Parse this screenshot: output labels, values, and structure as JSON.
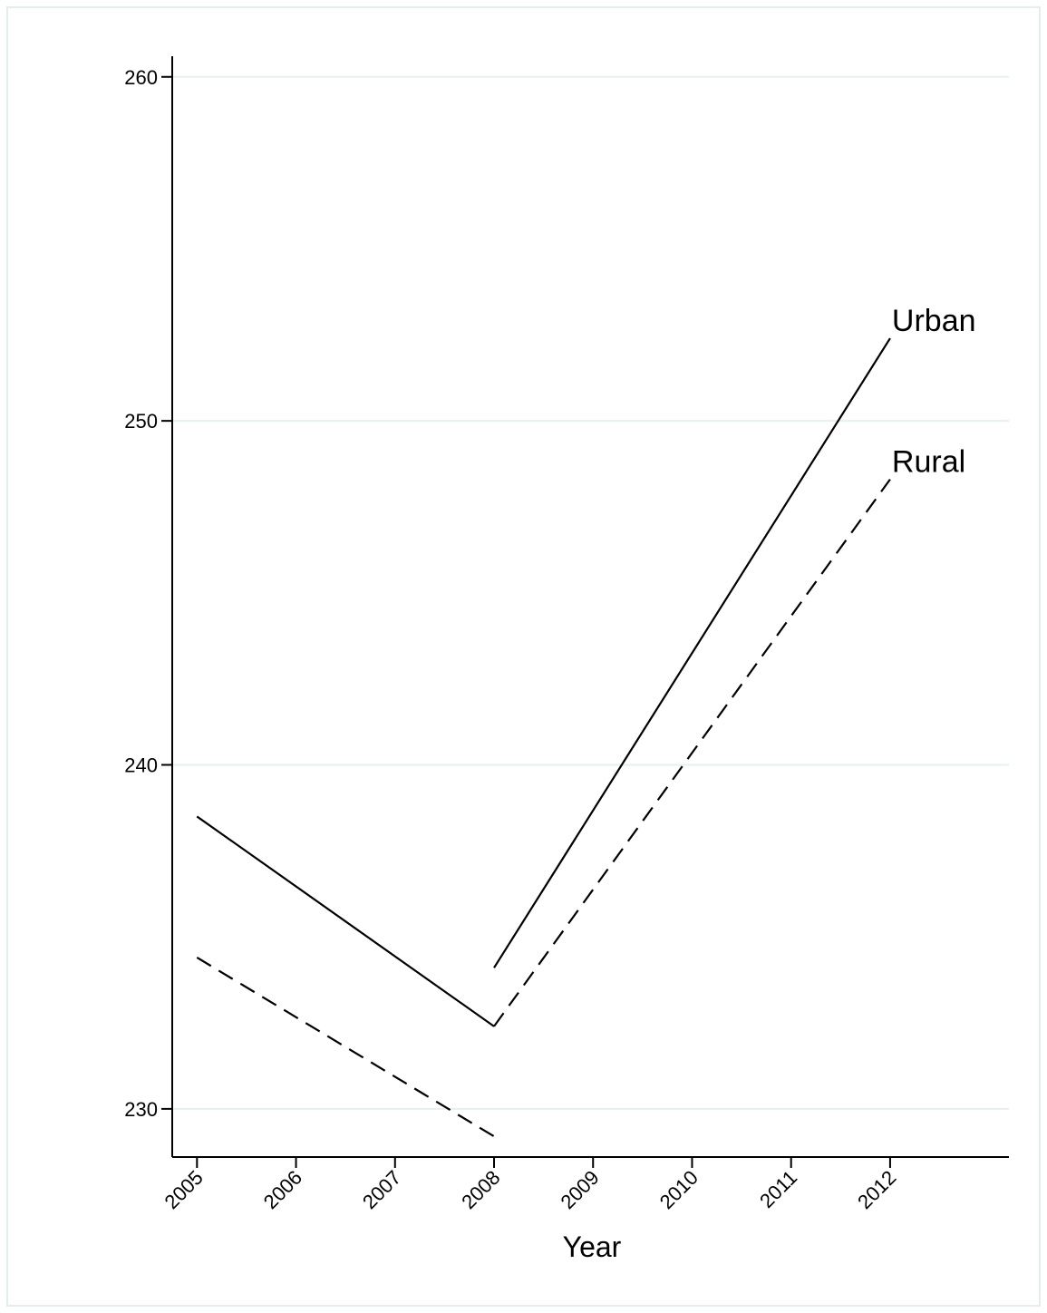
{
  "chart_data": {
    "type": "line",
    "x_label": "Year",
    "x": [
      2005,
      2008,
      2008,
      2008,
      2012
    ],
    "series": [
      {
        "name": "Urban",
        "color": "#000000",
        "dash": "solid",
        "values": [
          238.5,
          232.4,
          null,
          234.1,
          252.4
        ]
      },
      {
        "name": "Rural",
        "color": "#000000",
        "dash": "dashed",
        "values": [
          234.4,
          229.2,
          null,
          232.4,
          248.3
        ]
      }
    ],
    "xlim": [
      2004.75,
      2013.2
    ],
    "xticks": [
      2005,
      2006,
      2007,
      2008,
      2009,
      2010,
      2011,
      2012
    ],
    "ylim": [
      228.6,
      260.6
    ],
    "yticks": [
      230,
      240,
      250,
      260
    ],
    "grid": true
  }
}
